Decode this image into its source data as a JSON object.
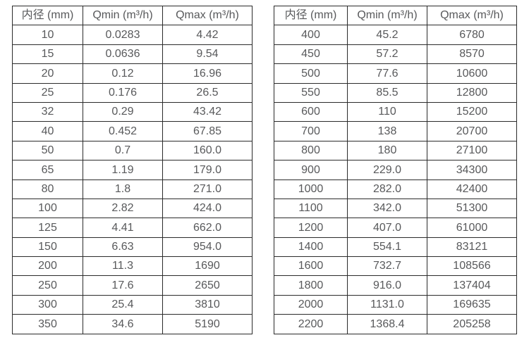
{
  "colors": {
    "background": "#ffffff",
    "border": "#2b2b2b",
    "text": "#58595b"
  },
  "tables": [
    {
      "headers": [
        "内径 (mm)",
        "Qmin (m³/h)",
        "Qmax (m³/h)"
      ],
      "rows": [
        [
          "10",
          "0.0283",
          "4.42"
        ],
        [
          "15",
          "0.0636",
          "9.54"
        ],
        [
          "20",
          "0.12",
          "16.96"
        ],
        [
          "25",
          "0.176",
          "26.5"
        ],
        [
          "32",
          "0.29",
          "43.42"
        ],
        [
          "40",
          "0.452",
          "67.85"
        ],
        [
          "50",
          "0.7",
          "160.0"
        ],
        [
          "65",
          "1.19",
          "179.0"
        ],
        [
          "80",
          "1.8",
          "271.0"
        ],
        [
          "100",
          "2.82",
          "424.0"
        ],
        [
          "125",
          "4.41",
          "662.0"
        ],
        [
          "150",
          "6.63",
          "954.0"
        ],
        [
          "200",
          "11.3",
          "1690"
        ],
        [
          "250",
          "17.6",
          "2650"
        ],
        [
          "300",
          "25.4",
          "3810"
        ],
        [
          "350",
          "34.6",
          "5190"
        ]
      ]
    },
    {
      "headers": [
        "内径 (mm)",
        "Qmin (m³/h)",
        "Qmax (m³/h)"
      ],
      "rows": [
        [
          "400",
          "45.2",
          "6780"
        ],
        [
          "450",
          "57.2",
          "8570"
        ],
        [
          "500",
          "77.6",
          "10600"
        ],
        [
          "550",
          "85.5",
          "12800"
        ],
        [
          "600",
          "110",
          "15200"
        ],
        [
          "700",
          "138",
          "20700"
        ],
        [
          "800",
          "180",
          "27100"
        ],
        [
          "900",
          "229.0",
          "34300"
        ],
        [
          "1000",
          "282.0",
          "42400"
        ],
        [
          "1100",
          "342.0",
          "51300"
        ],
        [
          "1200",
          "407.0",
          "61000"
        ],
        [
          "1400",
          "554.1",
          "83121"
        ],
        [
          "1600",
          "732.7",
          "108566"
        ],
        [
          "1800",
          "916.0",
          "137404"
        ],
        [
          "2000",
          "1131.0",
          "169635"
        ],
        [
          "2200",
          "1368.4",
          "205258"
        ]
      ]
    }
  ]
}
